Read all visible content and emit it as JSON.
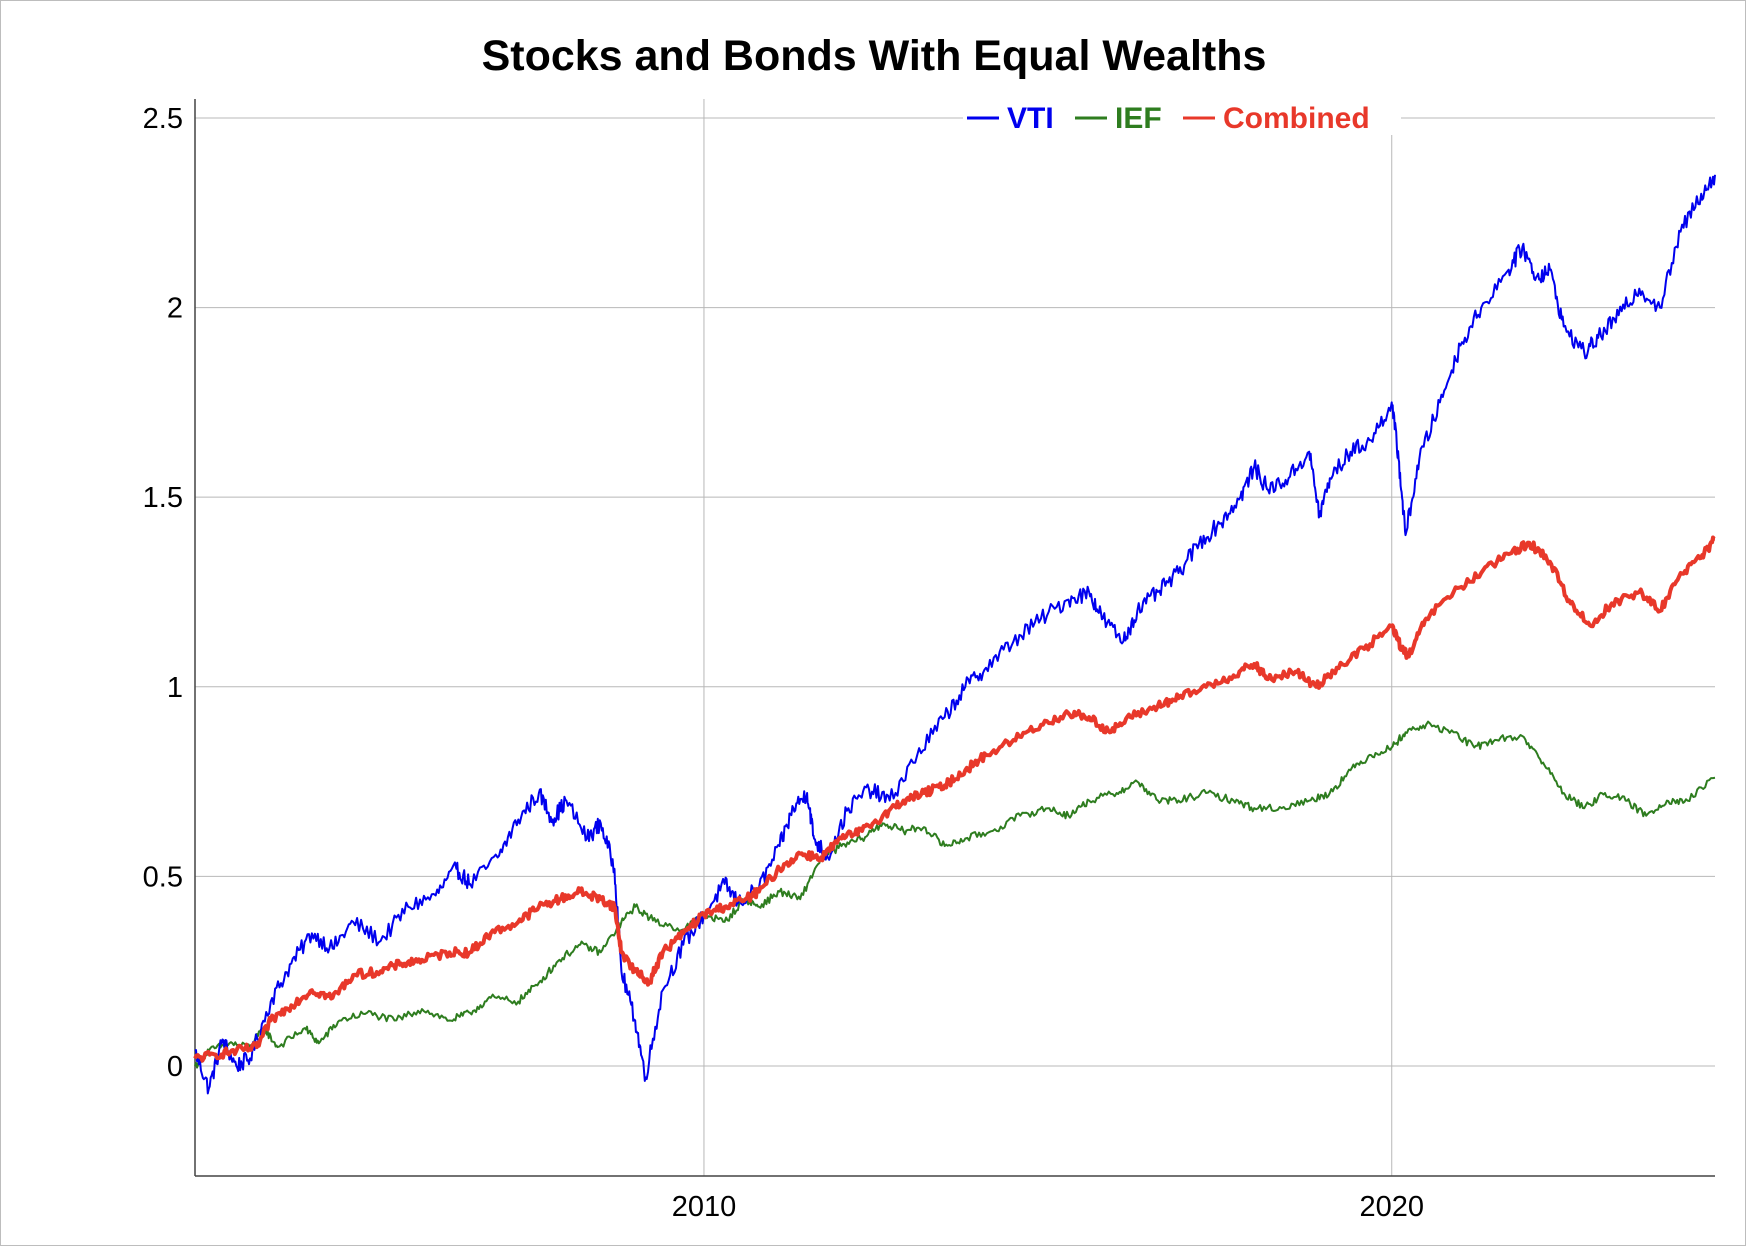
{
  "chart_data": {
    "type": "line",
    "title": "Stocks and Bonds With Equal Wealths",
    "xlabel": "",
    "ylabel": "",
    "x_ticks": [
      "2010",
      "2020"
    ],
    "y_ticks": [
      "2.5",
      "2",
      "1.5",
      "1",
      "0.5",
      "0"
    ],
    "xlim": [
      2002.6,
      2024.7
    ],
    "ylim": [
      -0.29,
      2.55
    ],
    "grid": true,
    "legend_position": "top-right",
    "series": [
      {
        "name": "VTI",
        "color": "#0000ee",
        "points": [
          [
            2002.6,
            0.04
          ],
          [
            2002.8,
            -0.06
          ],
          [
            2003.0,
            0.07
          ],
          [
            2003.2,
            0.0
          ],
          [
            2003.4,
            0.02
          ],
          [
            2003.7,
            0.17
          ],
          [
            2004.0,
            0.27
          ],
          [
            2004.3,
            0.35
          ],
          [
            2004.6,
            0.31
          ],
          [
            2004.9,
            0.38
          ],
          [
            2005.3,
            0.33
          ],
          [
            2005.7,
            0.42
          ],
          [
            2006.1,
            0.45
          ],
          [
            2006.4,
            0.52
          ],
          [
            2006.6,
            0.48
          ],
          [
            2007.0,
            0.55
          ],
          [
            2007.3,
            0.65
          ],
          [
            2007.6,
            0.72
          ],
          [
            2007.8,
            0.65
          ],
          [
            2008.0,
            0.7
          ],
          [
            2008.3,
            0.6
          ],
          [
            2008.5,
            0.64
          ],
          [
            2008.7,
            0.52
          ],
          [
            2008.8,
            0.25
          ],
          [
            2009.0,
            0.12
          ],
          [
            2009.15,
            -0.03
          ],
          [
            2009.4,
            0.2
          ],
          [
            2009.7,
            0.32
          ],
          [
            2010.0,
            0.4
          ],
          [
            2010.3,
            0.48
          ],
          [
            2010.5,
            0.43
          ],
          [
            2010.8,
            0.47
          ],
          [
            2011.1,
            0.58
          ],
          [
            2011.3,
            0.68
          ],
          [
            2011.5,
            0.72
          ],
          [
            2011.6,
            0.6
          ],
          [
            2011.8,
            0.55
          ],
          [
            2012.1,
            0.68
          ],
          [
            2012.4,
            0.73
          ],
          [
            2012.7,
            0.7
          ],
          [
            2013.1,
            0.82
          ],
          [
            2013.5,
            0.92
          ],
          [
            2013.8,
            1.0
          ],
          [
            2014.1,
            1.05
          ],
          [
            2014.5,
            1.12
          ],
          [
            2014.9,
            1.18
          ],
          [
            2015.3,
            1.23
          ],
          [
            2015.6,
            1.25
          ],
          [
            2015.8,
            1.18
          ],
          [
            2016.1,
            1.12
          ],
          [
            2016.3,
            1.2
          ],
          [
            2016.6,
            1.25
          ],
          [
            2016.9,
            1.3
          ],
          [
            2017.2,
            1.38
          ],
          [
            2017.5,
            1.43
          ],
          [
            2017.8,
            1.5
          ],
          [
            2018.0,
            1.58
          ],
          [
            2018.2,
            1.52
          ],
          [
            2018.5,
            1.55
          ],
          [
            2018.8,
            1.62
          ],
          [
            2018.95,
            1.45
          ],
          [
            2019.1,
            1.55
          ],
          [
            2019.4,
            1.62
          ],
          [
            2019.7,
            1.65
          ],
          [
            2020.0,
            1.75
          ],
          [
            2020.1,
            1.6
          ],
          [
            2020.2,
            1.4
          ],
          [
            2020.4,
            1.6
          ],
          [
            2020.7,
            1.75
          ],
          [
            2021.0,
            1.9
          ],
          [
            2021.3,
            2.0
          ],
          [
            2021.7,
            2.1
          ],
          [
            2021.9,
            2.16
          ],
          [
            2022.1,
            2.08
          ],
          [
            2022.3,
            2.1
          ],
          [
            2022.5,
            1.95
          ],
          [
            2022.8,
            1.88
          ],
          [
            2023.0,
            1.92
          ],
          [
            2023.3,
            1.98
          ],
          [
            2023.6,
            2.05
          ],
          [
            2023.9,
            2.0
          ],
          [
            2024.2,
            2.2
          ],
          [
            2024.5,
            2.3
          ],
          [
            2024.7,
            2.35
          ]
        ]
      },
      {
        "name": "IEF",
        "color": "#2e7d1f",
        "points": [
          [
            2002.6,
            0.0
          ],
          [
            2002.8,
            0.04
          ],
          [
            2003.1,
            0.06
          ],
          [
            2003.4,
            0.05
          ],
          [
            2003.6,
            0.1
          ],
          [
            2003.8,
            0.05
          ],
          [
            2004.2,
            0.1
          ],
          [
            2004.4,
            0.06
          ],
          [
            2004.7,
            0.12
          ],
          [
            2005.1,
            0.14
          ],
          [
            2005.5,
            0.12
          ],
          [
            2005.9,
            0.15
          ],
          [
            2006.3,
            0.12
          ],
          [
            2006.6,
            0.14
          ],
          [
            2006.9,
            0.18
          ],
          [
            2007.3,
            0.17
          ],
          [
            2007.6,
            0.22
          ],
          [
            2007.9,
            0.28
          ],
          [
            2008.2,
            0.32
          ],
          [
            2008.5,
            0.3
          ],
          [
            2008.8,
            0.38
          ],
          [
            2009.0,
            0.42
          ],
          [
            2009.3,
            0.38
          ],
          [
            2009.7,
            0.36
          ],
          [
            2010.0,
            0.4
          ],
          [
            2010.3,
            0.38
          ],
          [
            2010.6,
            0.44
          ],
          [
            2010.8,
            0.42
          ],
          [
            2011.1,
            0.46
          ],
          [
            2011.4,
            0.44
          ],
          [
            2011.7,
            0.55
          ],
          [
            2012.0,
            0.58
          ],
          [
            2012.3,
            0.6
          ],
          [
            2012.6,
            0.64
          ],
          [
            2012.9,
            0.62
          ],
          [
            2013.2,
            0.63
          ],
          [
            2013.5,
            0.58
          ],
          [
            2013.8,
            0.6
          ],
          [
            2014.2,
            0.62
          ],
          [
            2014.6,
            0.66
          ],
          [
            2015.0,
            0.68
          ],
          [
            2015.3,
            0.66
          ],
          [
            2015.6,
            0.7
          ],
          [
            2016.0,
            0.72
          ],
          [
            2016.3,
            0.75
          ],
          [
            2016.6,
            0.7
          ],
          [
            2016.9,
            0.7
          ],
          [
            2017.3,
            0.72
          ],
          [
            2017.7,
            0.7
          ],
          [
            2018.0,
            0.68
          ],
          [
            2018.4,
            0.68
          ],
          [
            2018.8,
            0.7
          ],
          [
            2019.1,
            0.72
          ],
          [
            2019.4,
            0.78
          ],
          [
            2019.7,
            0.82
          ],
          [
            2020.0,
            0.84
          ],
          [
            2020.2,
            0.88
          ],
          [
            2020.5,
            0.9
          ],
          [
            2020.9,
            0.88
          ],
          [
            2021.2,
            0.84
          ],
          [
            2021.5,
            0.86
          ],
          [
            2021.9,
            0.87
          ],
          [
            2022.2,
            0.8
          ],
          [
            2022.5,
            0.72
          ],
          [
            2022.8,
            0.68
          ],
          [
            2023.1,
            0.72
          ],
          [
            2023.4,
            0.7
          ],
          [
            2023.7,
            0.66
          ],
          [
            2024.0,
            0.7
          ],
          [
            2024.3,
            0.7
          ],
          [
            2024.7,
            0.76
          ]
        ]
      },
      {
        "name": "Combined",
        "color": "#e8382a",
        "points": [
          [
            2002.6,
            0.02
          ],
          [
            2002.9,
            0.03
          ],
          [
            2003.2,
            0.04
          ],
          [
            2003.5,
            0.05
          ],
          [
            2003.7,
            0.12
          ],
          [
            2004.0,
            0.16
          ],
          [
            2004.3,
            0.2
          ],
          [
            2004.6,
            0.18
          ],
          [
            2004.9,
            0.24
          ],
          [
            2005.3,
            0.25
          ],
          [
            2005.6,
            0.27
          ],
          [
            2005.9,
            0.28
          ],
          [
            2006.3,
            0.3
          ],
          [
            2006.6,
            0.3
          ],
          [
            2006.9,
            0.35
          ],
          [
            2007.3,
            0.38
          ],
          [
            2007.6,
            0.42
          ],
          [
            2007.9,
            0.44
          ],
          [
            2008.2,
            0.46
          ],
          [
            2008.5,
            0.44
          ],
          [
            2008.7,
            0.42
          ],
          [
            2008.8,
            0.3
          ],
          [
            2009.0,
            0.25
          ],
          [
            2009.2,
            0.22
          ],
          [
            2009.4,
            0.3
          ],
          [
            2009.7,
            0.35
          ],
          [
            2010.0,
            0.4
          ],
          [
            2010.3,
            0.42
          ],
          [
            2010.6,
            0.44
          ],
          [
            2010.8,
            0.46
          ],
          [
            2011.1,
            0.52
          ],
          [
            2011.4,
            0.56
          ],
          [
            2011.7,
            0.55
          ],
          [
            2012.0,
            0.6
          ],
          [
            2012.3,
            0.62
          ],
          [
            2012.6,
            0.66
          ],
          [
            2012.9,
            0.7
          ],
          [
            2013.2,
            0.72
          ],
          [
            2013.5,
            0.74
          ],
          [
            2013.8,
            0.78
          ],
          [
            2014.1,
            0.82
          ],
          [
            2014.5,
            0.86
          ],
          [
            2014.9,
            0.9
          ],
          [
            2015.3,
            0.93
          ],
          [
            2015.6,
            0.92
          ],
          [
            2015.9,
            0.88
          ],
          [
            2016.2,
            0.92
          ],
          [
            2016.6,
            0.95
          ],
          [
            2016.9,
            0.97
          ],
          [
            2017.3,
            1.0
          ],
          [
            2017.7,
            1.03
          ],
          [
            2018.0,
            1.06
          ],
          [
            2018.2,
            1.02
          ],
          [
            2018.6,
            1.04
          ],
          [
            2018.9,
            1.0
          ],
          [
            2019.2,
            1.05
          ],
          [
            2019.6,
            1.1
          ],
          [
            2020.0,
            1.16
          ],
          [
            2020.15,
            1.1
          ],
          [
            2020.25,
            1.08
          ],
          [
            2020.5,
            1.18
          ],
          [
            2020.9,
            1.25
          ],
          [
            2021.3,
            1.3
          ],
          [
            2021.7,
            1.35
          ],
          [
            2022.0,
            1.38
          ],
          [
            2022.3,
            1.33
          ],
          [
            2022.6,
            1.22
          ],
          [
            2022.9,
            1.16
          ],
          [
            2023.2,
            1.22
          ],
          [
            2023.6,
            1.25
          ],
          [
            2023.9,
            1.2
          ],
          [
            2024.2,
            1.3
          ],
          [
            2024.5,
            1.34
          ],
          [
            2024.7,
            1.39
          ]
        ]
      }
    ]
  }
}
